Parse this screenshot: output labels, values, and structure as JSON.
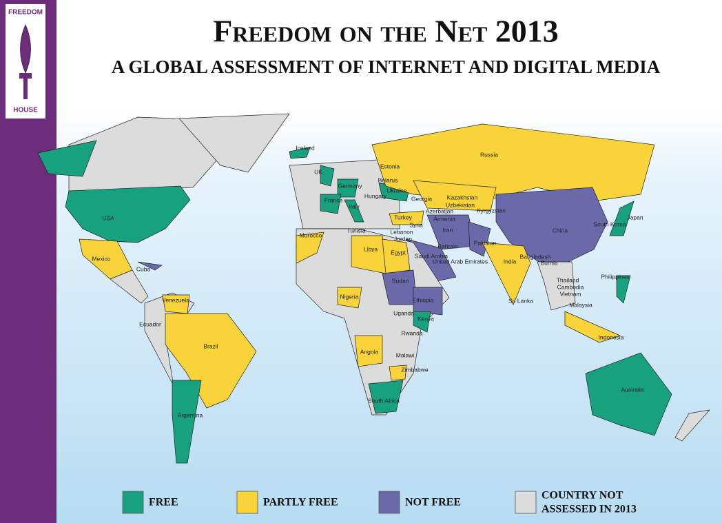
{
  "logo": {
    "lines": [
      "FREEDOM",
      "HOUSE"
    ]
  },
  "header": {
    "title": "Freedom on the Net 2013",
    "subtitle": "A GLOBAL ASSESSMENT OF INTERNET AND DIGITAL MEDIA"
  },
  "map": {
    "labels": [
      "Iceland",
      "UK",
      "Estonia",
      "Belarus",
      "Germany",
      "France",
      "Italy",
      "Hungary",
      "Ukraine",
      "Georgia",
      "Kazakhstan",
      "Russia",
      "Uzbekistan",
      "Kyrgyzstan",
      "Azerbaijan",
      "Armenia",
      "Turkey",
      "Syria",
      "Lebanon",
      "Jordan",
      "Tunisia",
      "Morocco",
      "Libya",
      "Egypt",
      "Iran",
      "Bahrain",
      "Saudi Arabia",
      "United Arab Emirates",
      "Pakistan",
      "China",
      "South Korea",
      "Japan",
      "India",
      "Bangladesh",
      "Burma",
      "Thailand",
      "Cambodia",
      "Vietnam",
      "Philippines",
      "Malaysia",
      "Sri Lanka",
      "Indonesia",
      "Australia",
      "USA",
      "Mexico",
      "Cuba",
      "Venezuela",
      "Ecuador",
      "Brazil",
      "Argentina",
      "Sudan",
      "Ethiopia",
      "Nigeria",
      "Uganda",
      "Kenya",
      "Rwanda",
      "Angola",
      "Malawi",
      "Zimbabwe",
      "South Africa"
    ]
  },
  "legend": [
    {
      "label": [
        "FREE"
      ],
      "color": "#17a17f"
    },
    {
      "label": [
        "PARTLY FREE"
      ],
      "color": "#f8d43a"
    },
    {
      "label": [
        "NOT FREE"
      ],
      "color": "#6a6aab"
    },
    {
      "label": [
        "COUNTRY NOT",
        "ASSESSED IN 2013"
      ],
      "color": "#dcdcdc"
    }
  ]
}
